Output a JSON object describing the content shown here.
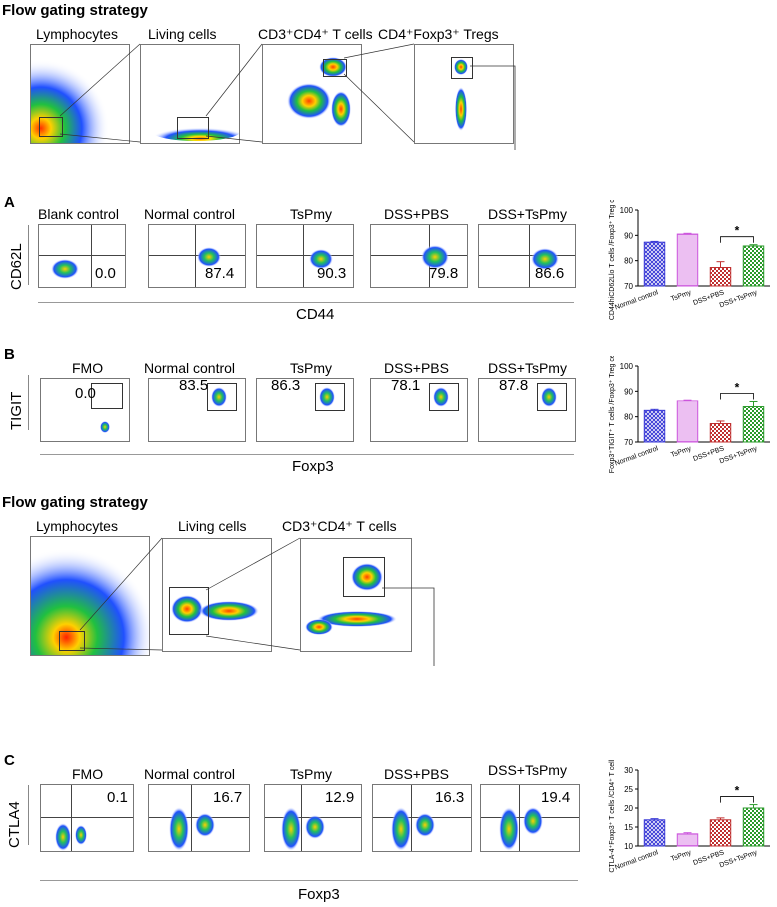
{
  "section1": {
    "title": "Flow gating strategy",
    "gates": [
      "Lymphocytes",
      "Living cells",
      "CD3⁺CD4⁺ T cells",
      "CD4⁺Foxp3⁺ Tregs"
    ]
  },
  "panelA": {
    "label": "A",
    "y_marker": "CD62L",
    "x_marker": "CD44",
    "columns": [
      {
        "title": "Blank control",
        "value": "0.0"
      },
      {
        "title": "Normal control",
        "value": "87.4"
      },
      {
        "title": "TsPmy",
        "value": "90.3"
      },
      {
        "title": "DSS+PBS",
        "value": "79.8"
      },
      {
        "title": "DSS+TsPmy",
        "value": "86.6"
      }
    ]
  },
  "panelB": {
    "label": "B",
    "y_marker": "TIGIT",
    "x_marker": "Foxp3",
    "columns": [
      {
        "title": "FMO",
        "value": "0.0"
      },
      {
        "title": "Normal control",
        "value": "83.5"
      },
      {
        "title": "TsPmy",
        "value": "86.3"
      },
      {
        "title": "DSS+PBS",
        "value": "78.1"
      },
      {
        "title": "DSS+TsPmy",
        "value": "87.8"
      }
    ]
  },
  "section2": {
    "title": "Flow gating strategy",
    "gates": [
      "Lymphocytes",
      "Living cells",
      "CD3⁺CD4⁺ T cells"
    ]
  },
  "panelC": {
    "label": "C",
    "y_marker": "CTLA4",
    "x_marker": "Foxp3",
    "columns": [
      {
        "title": "FMO",
        "value": "0.1"
      },
      {
        "title": "Normal control",
        "value": "16.7"
      },
      {
        "title": "TsPmy",
        "value": "12.9"
      },
      {
        "title": "DSS+PBS",
        "value": "16.3"
      },
      {
        "title": "DSS+TsPmy",
        "value": "19.4"
      }
    ]
  },
  "chart_data": [
    {
      "type": "bar",
      "categories": [
        "Normal control",
        "TsPmy",
        "DSS+PBS",
        "DSS+TsPmy"
      ],
      "values": [
        87.3,
        90.5,
        77.3,
        85.8
      ],
      "errors": [
        0.3,
        0.3,
        2.3,
        0.5
      ],
      "ylabel": "CD44hiCD62Llo T cells /Foxp3⁺ Treg cells (%)",
      "ylim": [
        70,
        100
      ],
      "yticks": [
        "70",
        "80",
        "90",
        "100"
      ],
      "significance": "*",
      "colors": [
        "#3a3ad6",
        "#cc55dd",
        "#c03030",
        "#2a9a2a"
      ]
    },
    {
      "type": "bar",
      "categories": [
        "Normal control",
        "TsPmy",
        "DSS+PBS",
        "DSS+TsPmy"
      ],
      "values": [
        82.5,
        86.2,
        77.3,
        84.0
      ],
      "errors": [
        0.4,
        0.3,
        1.0,
        2.0
      ],
      "ylabel": "Foxp3⁺TIGIT⁺ T cells /Foxp3⁺ Treg cells (%)",
      "ylim": [
        70,
        100
      ],
      "yticks": [
        "70",
        "80",
        "90",
        "100"
      ],
      "significance": "*",
      "colors": [
        "#3a3ad6",
        "#cc55dd",
        "#c03030",
        "#2a9a2a"
      ]
    },
    {
      "type": "bar",
      "categories": [
        "Normal control",
        "TsPmy",
        "DSS+PBS",
        "DSS+TsPmy"
      ],
      "values": [
        16.9,
        13.2,
        16.9,
        20.0
      ],
      "errors": [
        0.3,
        0.3,
        0.5,
        0.9
      ],
      "ylabel": "CTLA-4⁺Foxp3⁺ T cells /CD4⁺ T cells (%)",
      "ylim": [
        10,
        30
      ],
      "yticks": [
        "10",
        "15",
        "20",
        "25",
        "30"
      ],
      "significance": "*",
      "colors": [
        "#3a3ad6",
        "#cc55dd",
        "#c03030",
        "#2a9a2a"
      ]
    }
  ]
}
